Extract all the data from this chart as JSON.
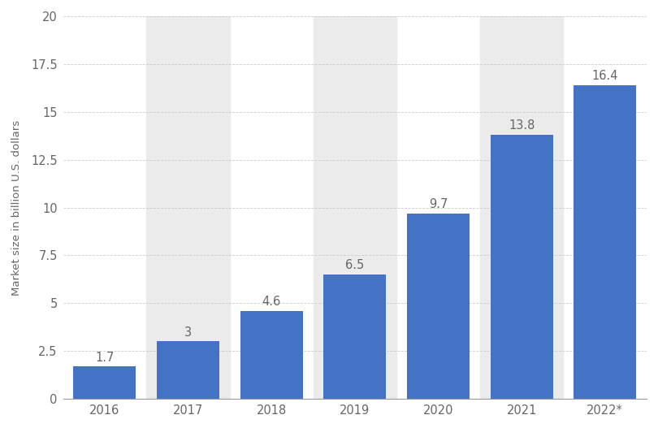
{
  "categories": [
    "2016",
    "2017",
    "2018",
    "2019",
    "2020",
    "2021",
    "2022*"
  ],
  "values": [
    1.7,
    3.0,
    4.6,
    6.5,
    9.7,
    13.8,
    16.4
  ],
  "bar_color": "#4472c4",
  "background_color": "#ffffff",
  "plot_bg_color": "#ffffff",
  "stripe_color": "#ebebeb",
  "grid_color": "#cccccc",
  "ylabel": "Market size in billion U.S. dollars",
  "ylim": [
    0,
    20
  ],
  "yticks": [
    0,
    2.5,
    5,
    7.5,
    10,
    12.5,
    15,
    17.5,
    20
  ],
  "label_color": "#666666",
  "tick_color": "#666666",
  "axis_color": "#999999",
  "label_fontsize": 10.5,
  "ylabel_fontsize": 9.5,
  "tick_fontsize": 10.5,
  "bar_width": 0.75,
  "stripe_columns": [
    1,
    3,
    5
  ]
}
